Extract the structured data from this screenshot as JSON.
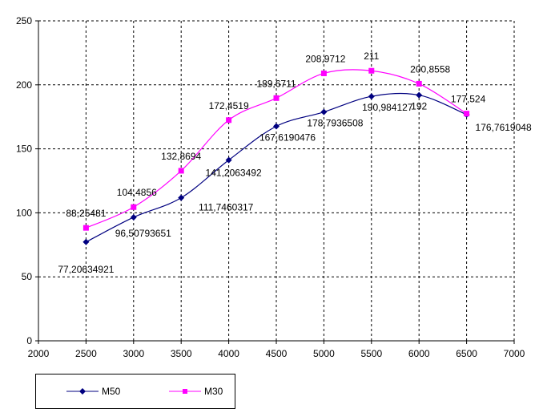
{
  "chart_data": {
    "type": "line",
    "title": "",
    "xlabel": "",
    "ylabel": "",
    "xlim": [
      2000,
      7000
    ],
    "ylim": [
      0,
      250
    ],
    "x_ticks": [
      2000,
      2500,
      3000,
      3500,
      4000,
      4500,
      5000,
      5500,
      6000,
      6500,
      7000
    ],
    "y_ticks": [
      0,
      50,
      100,
      150,
      200,
      250
    ],
    "x_tick_labels": [
      "2000",
      "2500",
      "3000",
      "3500",
      "4000",
      "4500",
      "5000",
      "5500",
      "6000",
      "6500",
      "7000"
    ],
    "y_tick_labels": [
      "0",
      "50",
      "100",
      "150",
      "200",
      "250"
    ],
    "grid": true,
    "grid_style": "dashed",
    "legend_position": "bottom-left",
    "x": [
      2500,
      3000,
      3500,
      4000,
      4500,
      5000,
      5500,
      6000,
      6500
    ],
    "series": [
      {
        "name": "M50",
        "color": "#000080",
        "marker": "diamond",
        "values": [
          77.20634921,
          96.50793651,
          111.7460317,
          141.2063492,
          167.6190476,
          178.7936508,
          190.984127,
          192,
          176.7619048
        ],
        "labels": [
          "77,20634921",
          "96,50793651",
          "111,7460317",
          "141,2063492",
          "167,6190476",
          "178,7936508",
          "190,984127",
          "192",
          "176,7619048"
        ]
      },
      {
        "name": "M30",
        "color": "#ff00ff",
        "marker": "square",
        "values": [
          88.25481,
          104.4856,
          132.8694,
          172.4519,
          189.6711,
          208.9712,
          211,
          200.8558,
          177.524
        ],
        "labels": [
          "88,25481",
          "104,4856",
          "132,8694",
          "172,4519",
          "189,6711",
          "208,9712",
          "211",
          "200,8558",
          "177,524"
        ]
      }
    ]
  }
}
